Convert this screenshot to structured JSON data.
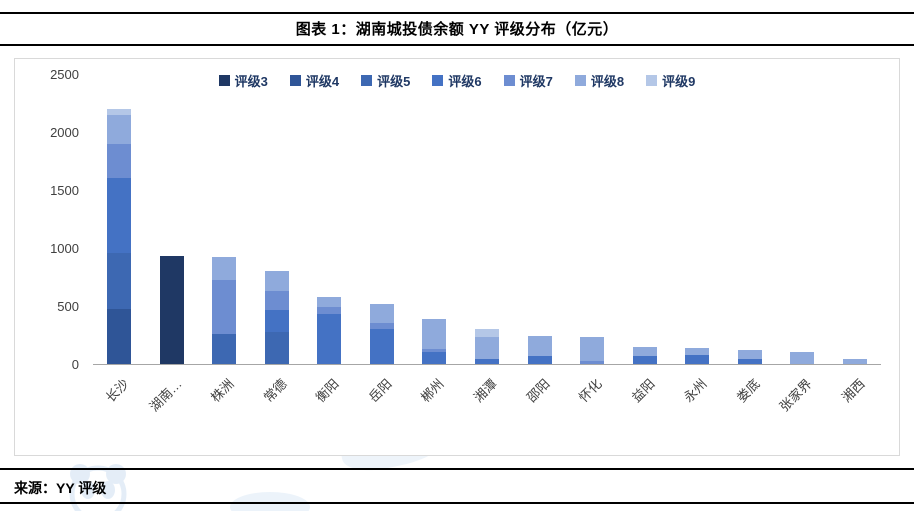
{
  "header": {
    "title": "图表 1：湖南城投债余额 YY 评级分布（亿元）"
  },
  "footer": {
    "source": "来源：YY 评级"
  },
  "colors": {
    "axis_line": "#a6a6a6",
    "tick_text": "#404040",
    "legend_text": "#1f3864",
    "chart_border": "#d9d9d9",
    "watermark": "#cfe0f2"
  },
  "chart_data": {
    "type": "bar",
    "stacked": true,
    "title": "图表 1：湖南城投债余额 YY 评级分布（亿元）",
    "unit": "亿元",
    "categories": [
      "长沙",
      "湖南…",
      "株洲",
      "常德",
      "衡阳",
      "岳阳",
      "郴州",
      "湘潭",
      "邵阳",
      "怀化",
      "益阳",
      "永州",
      "娄底",
      "张家界",
      "湘西"
    ],
    "series": [
      {
        "name": "评级3",
        "color": "#1F3864",
        "values": [
          0,
          930,
          0,
          0,
          0,
          0,
          0,
          0,
          0,
          0,
          0,
          0,
          0,
          0,
          0
        ]
      },
      {
        "name": "评级4",
        "color": "#2F5597",
        "values": [
          470,
          0,
          0,
          0,
          0,
          0,
          0,
          0,
          0,
          0,
          0,
          0,
          0,
          0,
          0
        ]
      },
      {
        "name": "评级5",
        "color": "#3D68B2",
        "values": [
          490,
          0,
          260,
          280,
          0,
          0,
          0,
          0,
          0,
          0,
          0,
          0,
          0,
          0,
          0
        ]
      },
      {
        "name": "评级6",
        "color": "#4472C4",
        "values": [
          640,
          0,
          0,
          190,
          430,
          300,
          100,
          40,
          70,
          0,
          70,
          80,
          40,
          0,
          0
        ]
      },
      {
        "name": "评级7",
        "color": "#6D8DD1",
        "values": [
          300,
          0,
          460,
          160,
          60,
          50,
          30,
          0,
          0,
          30,
          0,
          0,
          0,
          0,
          0
        ]
      },
      {
        "name": "评级8",
        "color": "#8FAADC",
        "values": [
          250,
          0,
          200,
          170,
          90,
          170,
          260,
          190,
          170,
          200,
          80,
          60,
          80,
          105,
          45
        ]
      },
      {
        "name": "评级9",
        "color": "#B4C7E7",
        "values": [
          50,
          0,
          0,
          0,
          0,
          0,
          0,
          70,
          0,
          0,
          0,
          0,
          0,
          0,
          0
        ]
      }
    ],
    "ylim": [
      0,
      2500
    ],
    "yticks": [
      0,
      500,
      1000,
      1500,
      2000,
      2500
    ],
    "legend_position": "top",
    "grid": false
  }
}
